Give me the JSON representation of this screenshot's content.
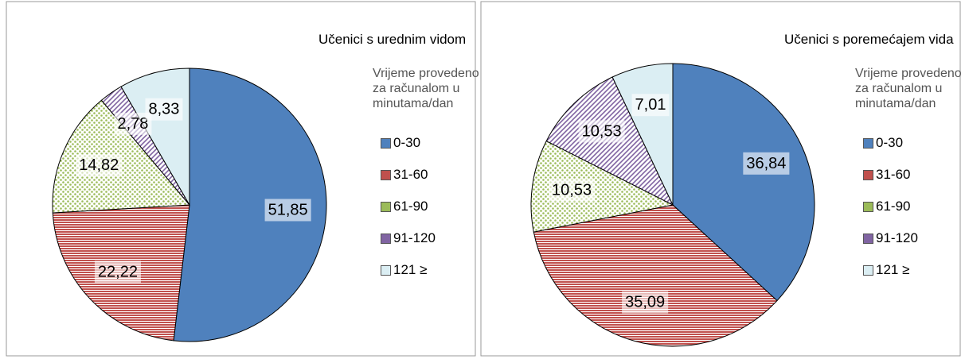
{
  "chart_data": [
    {
      "type": "pie",
      "title": "Učenici s urednim vidom",
      "legend_title": "Vrijeme provedeno za računalom u minutama/dan",
      "categories": [
        "0-30",
        "31-60",
        "61-90",
        "91-120",
        "121 ≥"
      ],
      "values": [
        51.85,
        22.22,
        14.82,
        2.78,
        8.33
      ],
      "value_labels": [
        "51,85",
        "22,22",
        "14,82",
        "2,78",
        "8,33"
      ],
      "colors": [
        "#4f81bd",
        "#c0504d",
        "#9bbb59",
        "#8064a2",
        "#b7dde8"
      ],
      "fills": [
        "solid",
        "hlines",
        "dots",
        "diag",
        "light"
      ]
    },
    {
      "type": "pie",
      "title": "Učenici s poremećajem vida",
      "legend_title": "Vrijeme provedeno za računalom u minutama/dan",
      "categories": [
        "0-30",
        "31-60",
        "61-90",
        "91-120",
        "121 ≥"
      ],
      "values": [
        36.84,
        35.09,
        10.53,
        10.53,
        7.01
      ],
      "value_labels": [
        "36,84",
        "35,09",
        "10,53",
        "10,53",
        "7,01"
      ],
      "colors": [
        "#4f81bd",
        "#c0504d",
        "#9bbb59",
        "#8064a2",
        "#b7dde8"
      ],
      "fills": [
        "solid",
        "hlines",
        "dots",
        "diag",
        "light"
      ]
    }
  ]
}
